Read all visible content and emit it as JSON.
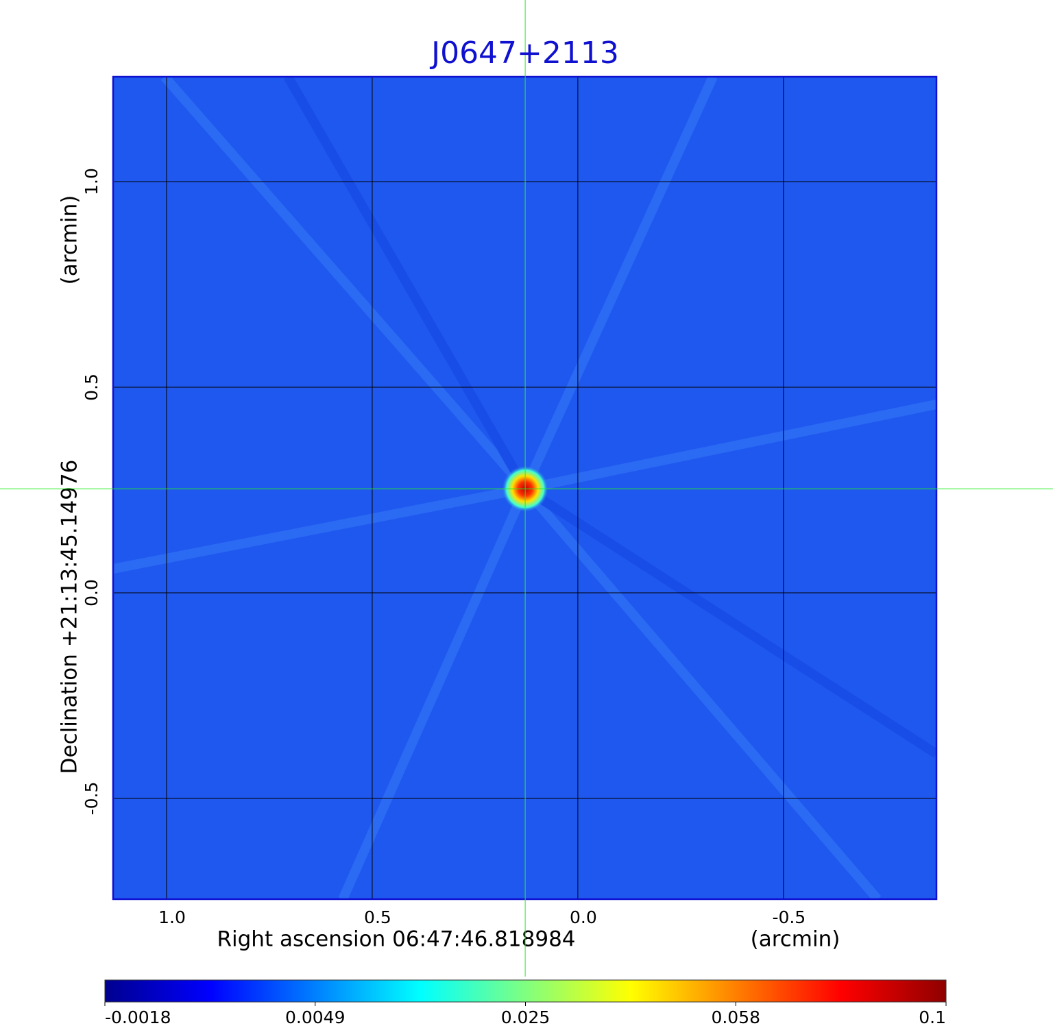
{
  "chart_data": {
    "type": "image",
    "title": "J0647+2113",
    "xlabel": "Right ascension  06:47:46.818984",
    "xunit": "(arcmin)",
    "ylabel": "Declination  +21:13:45.14976",
    "yunit": "(arcmin)",
    "xlim": [
      1.13,
      -0.872
    ],
    "ylim": [
      -0.745,
      1.255
    ],
    "xticks": [
      {
        "value": 1,
        "label": "1.0"
      },
      0.5,
      {
        "value": 0,
        "label": "0.0"
      },
      -0.5
    ],
    "yticks": [
      -0.5,
      {
        "value": 0,
        "label": "0.0"
      },
      0.5,
      {
        "value": 1,
        "label": "1.0"
      }
    ],
    "grid": true,
    "crosshair": {
      "x": 0.128,
      "y": 0.253,
      "color": "#22ee22"
    },
    "colorbar": {
      "ticks": [
        -0.0018,
        0.0049,
        0.025,
        0.058,
        0.1
      ]
    }
  }
}
